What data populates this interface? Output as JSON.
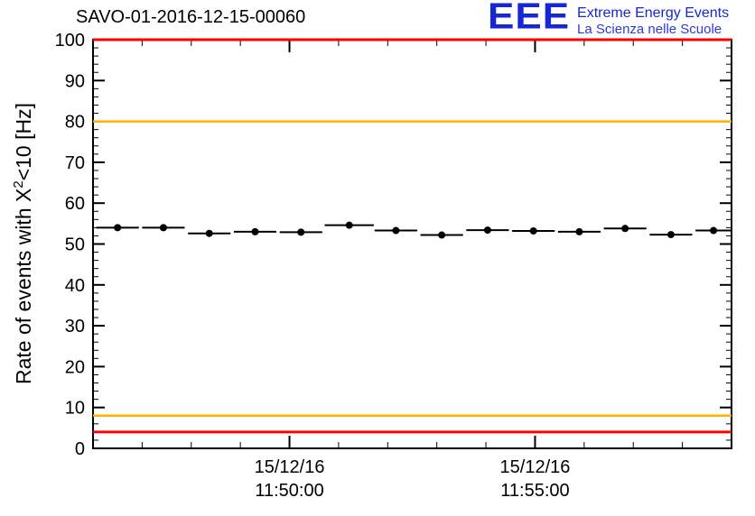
{
  "header": {
    "title": "SAVO-01-2016-12-15-00060",
    "logo": {
      "acronym": "EEE",
      "line1": "Extreme Energy Events",
      "line2": "La Scienza nelle Scuole"
    }
  },
  "y_axis": {
    "label_prefix": "Rate of events with X",
    "label_sup": "2",
    "label_suffix": "<10 [Hz]"
  },
  "chart_data": {
    "type": "scatter",
    "title": "SAVO-01-2016-12-15-00060",
    "ylabel": "Rate of events with X^2<10 [Hz]",
    "xlabel": "",
    "ylim": [
      0,
      100
    ],
    "y_ticks": [
      0,
      10,
      20,
      30,
      40,
      50,
      60,
      70,
      80,
      90,
      100
    ],
    "y_minor_step": 2,
    "x_domain_seconds": [
      0,
      780
    ],
    "x_minor_step_seconds": 60,
    "x_major_ticks": [
      {
        "t": 240,
        "date": "15/12/16",
        "time": "11:50:00"
      },
      {
        "t": 540,
        "date": "15/12/16",
        "time": "11:55:00"
      }
    ],
    "reference_lines": [
      {
        "y": 100,
        "color": "#ff0000"
      },
      {
        "y": 80,
        "color": "#ffb300"
      },
      {
        "y": 8,
        "color": "#ffb300"
      },
      {
        "y": 4,
        "color": "#ff0000"
      }
    ],
    "series": [
      {
        "name": "rate",
        "marker_color": "#000000",
        "marker_radius": 4,
        "y_error": 0.5,
        "points": [
          {
            "t": 30,
            "y": 54.0,
            "t_halfwidth": 26
          },
          {
            "t": 86,
            "y": 54.0,
            "t_halfwidth": 26
          },
          {
            "t": 142,
            "y": 52.6,
            "t_halfwidth": 26
          },
          {
            "t": 198,
            "y": 53.0,
            "t_halfwidth": 26
          },
          {
            "t": 254,
            "y": 52.9,
            "t_halfwidth": 26
          },
          {
            "t": 313,
            "y": 54.6,
            "t_halfwidth": 30
          },
          {
            "t": 370,
            "y": 53.3,
            "t_halfwidth": 26
          },
          {
            "t": 426,
            "y": 52.2,
            "t_halfwidth": 26
          },
          {
            "t": 482,
            "y": 53.4,
            "t_halfwidth": 26
          },
          {
            "t": 538,
            "y": 53.2,
            "t_halfwidth": 26
          },
          {
            "t": 594,
            "y": 53.0,
            "t_halfwidth": 26
          },
          {
            "t": 650,
            "y": 53.8,
            "t_halfwidth": 26
          },
          {
            "t": 706,
            "y": 52.3,
            "t_halfwidth": 26
          },
          {
            "t": 758,
            "y": 53.3,
            "t_halfwidth": 22
          }
        ]
      }
    ],
    "axis_color": "#000000",
    "background": "#ffffff",
    "grid": false,
    "legend": false
  }
}
